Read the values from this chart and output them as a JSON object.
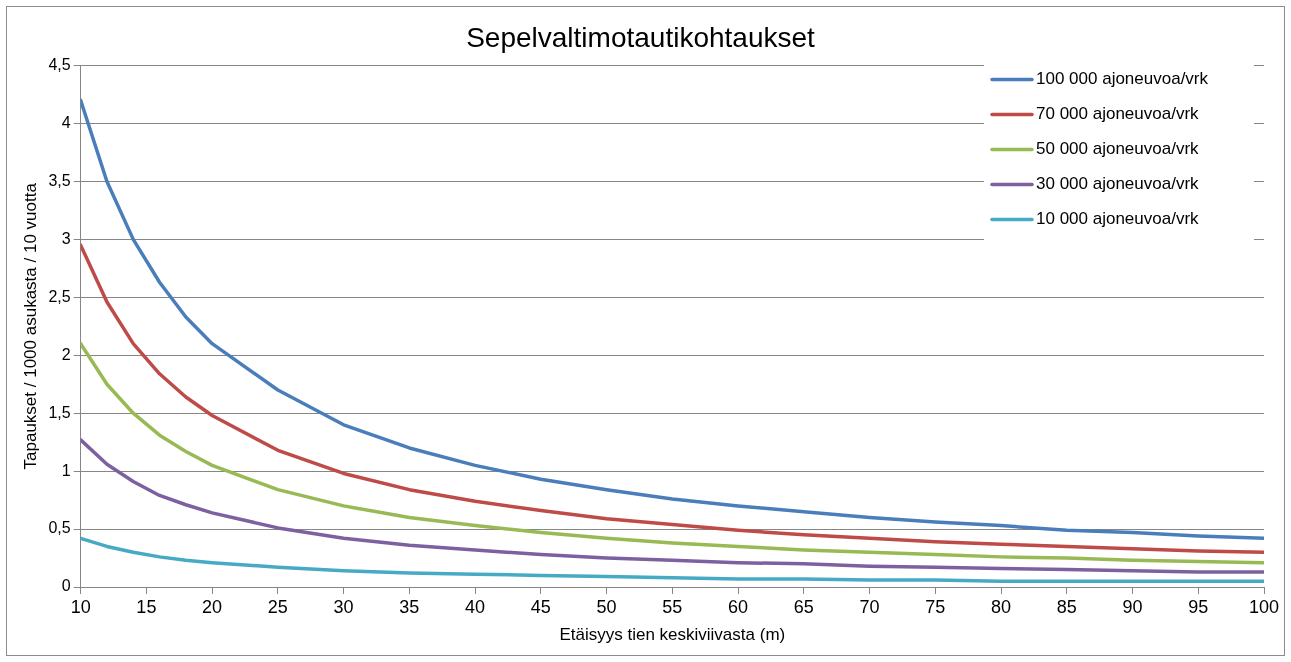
{
  "chart_data": {
    "type": "line",
    "title": "Sepelvaltimotautikohtaukset",
    "xlabel": "Etäisyys tien keskiviivasta (m)",
    "ylabel": "Tapaukset / 1000 asukasta / 10 vuotta",
    "x": [
      10,
      12,
      14,
      16,
      18,
      20,
      25,
      30,
      35,
      40,
      45,
      50,
      55,
      60,
      65,
      70,
      75,
      80,
      85,
      90,
      95,
      100
    ],
    "xlim": [
      10,
      100
    ],
    "xticks": [
      10,
      15,
      20,
      25,
      30,
      35,
      40,
      45,
      50,
      55,
      60,
      65,
      70,
      75,
      80,
      85,
      90,
      95,
      100
    ],
    "ylim": [
      0,
      4.5
    ],
    "yticks": [
      0,
      {
        "value": 0.5,
        "label": "0,5"
      },
      1,
      {
        "value": 1.5,
        "label": "1,5"
      },
      2,
      {
        "value": 2.5,
        "label": "2,5"
      },
      3,
      {
        "value": 3.5,
        "label": "3,5"
      },
      4,
      {
        "value": 4.5,
        "label": "4,5"
      }
    ],
    "grid": "y",
    "legend": "top right",
    "marker": "none",
    "line_style": "solid",
    "series": [
      {
        "name": "100 000 ajoneuvoa/vrk",
        "color": "#4a7ebb",
        "values": [
          4.2,
          3.5,
          3.0,
          2.63,
          2.33,
          2.1,
          1.7,
          1.4,
          1.2,
          1.05,
          0.93,
          0.84,
          0.76,
          0.7,
          0.65,
          0.6,
          0.56,
          0.53,
          0.49,
          0.47,
          0.44,
          0.42
        ]
      },
      {
        "name": "70 000 ajoneuvoa/vrk",
        "color": "#be4b48",
        "values": [
          2.95,
          2.46,
          2.1,
          1.84,
          1.64,
          1.48,
          1.18,
          0.98,
          0.84,
          0.74,
          0.66,
          0.59,
          0.54,
          0.49,
          0.45,
          0.42,
          0.39,
          0.37,
          0.35,
          0.33,
          0.31,
          0.3
        ]
      },
      {
        "name": "50 000 ajoneuvoa/vrk",
        "color": "#98b954",
        "values": [
          2.1,
          1.75,
          1.5,
          1.31,
          1.17,
          1.05,
          0.84,
          0.7,
          0.6,
          0.53,
          0.47,
          0.42,
          0.38,
          0.35,
          0.32,
          0.3,
          0.28,
          0.26,
          0.25,
          0.23,
          0.22,
          0.21
        ]
      },
      {
        "name": "30 000 ajoneuvoa/vrk",
        "color": "#7d60a0",
        "values": [
          1.27,
          1.06,
          0.91,
          0.79,
          0.71,
          0.64,
          0.51,
          0.42,
          0.36,
          0.32,
          0.28,
          0.25,
          0.23,
          0.21,
          0.2,
          0.18,
          0.17,
          0.16,
          0.15,
          0.14,
          0.13,
          0.13
        ]
      },
      {
        "name": "10 000 ajoneuvoa/vrk",
        "color": "#46aac5",
        "values": [
          0.42,
          0.35,
          0.3,
          0.26,
          0.23,
          0.21,
          0.17,
          0.14,
          0.12,
          0.11,
          0.1,
          0.09,
          0.08,
          0.07,
          0.07,
          0.06,
          0.06,
          0.05,
          0.05,
          0.05,
          0.05,
          0.05
        ]
      }
    ]
  }
}
